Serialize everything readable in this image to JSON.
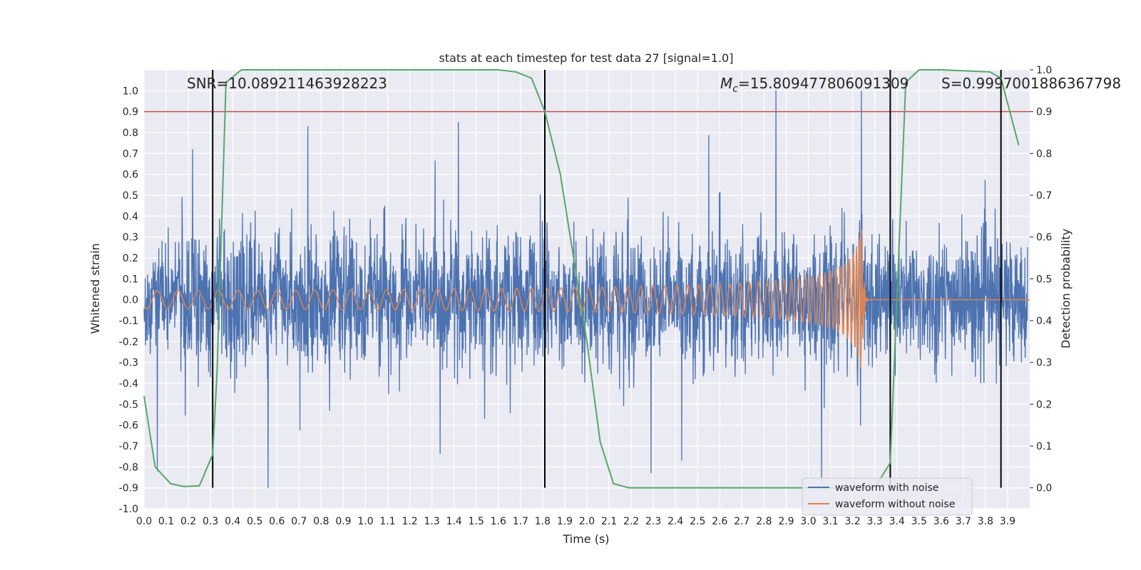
{
  "chart_data": {
    "type": "line",
    "title": "stats at each timestep for test data 27 [signal=1.0]",
    "xlabel": "Time (s)",
    "ylabel": "Whitened strain",
    "ylabel_right": "Detection probability",
    "xlim": [
      0.0,
      4.0
    ],
    "ylim": [
      -1.0,
      1.1
    ],
    "ylim_right": [
      -0.05,
      1.0
    ],
    "x_ticks": [
      "0.0",
      "0.1",
      "0.2",
      "0.3",
      "0.4",
      "0.5",
      "0.6",
      "0.7",
      "0.8",
      "0.9",
      "1.0",
      "1.1",
      "1.2",
      "1.3",
      "1.4",
      "1.5",
      "1.6",
      "1.7",
      "1.8",
      "1.9",
      "2.0",
      "2.1",
      "2.2",
      "2.3",
      "2.4",
      "2.5",
      "2.6",
      "2.7",
      "2.8",
      "2.9",
      "3.0",
      "3.1",
      "3.2",
      "3.3",
      "3.4",
      "3.5",
      "3.6",
      "3.7",
      "3.8",
      "3.9"
    ],
    "y_ticks": [
      "1.0",
      "0.9",
      "0.8",
      "0.7",
      "0.6",
      "0.5",
      "0.4",
      "0.3",
      "0.2",
      "0.1",
      "0.0",
      "-0.1",
      "-0.2",
      "-0.3",
      "-0.4",
      "-0.5",
      "-0.6",
      "-0.7",
      "-0.8",
      "-0.9",
      "-1.0"
    ],
    "y_ticks_right": [
      "1.0",
      "0.9",
      "0.8",
      "0.7",
      "0.6",
      "0.5",
      "0.4",
      "0.3",
      "0.2",
      "0.1",
      "0.0"
    ],
    "annotations": {
      "snr": "SNR=10.089211463928223",
      "mc_symbol": "M",
      "mc_sub": "c",
      "mc_value": "=15.809477806091309",
      "s": "S=0.9997001886367798"
    },
    "threshold_right": 0.9,
    "vertical_lines_x": [
      0.31,
      1.81,
      3.37,
      3.87
    ],
    "noise_series": {
      "name": "waveform with noise",
      "color": "#4c72b0",
      "samples": 3000,
      "sigma": 0.15,
      "peaks": [
        {
          "x": 0.06,
          "y": -0.82
        },
        {
          "x": 0.22,
          "y": 0.72
        },
        {
          "x": 0.74,
          "y": 0.83
        },
        {
          "x": 1.42,
          "y": 0.85
        },
        {
          "x": 2.29,
          "y": -0.83
        },
        {
          "x": 3.24,
          "y": 1.0
        },
        {
          "x": 3.06,
          "y": -0.87
        }
      ]
    },
    "clean_series": {
      "name": "waveform without noise",
      "color": "#dd8452",
      "t_merge": 3.245,
      "amp_peak": 0.4,
      "amp_base": 0.02
    },
    "probability_series": {
      "name": "detection probability",
      "color": "#55a868",
      "axis": "right",
      "x": [
        0.0,
        0.05,
        0.12,
        0.18,
        0.25,
        0.31,
        0.33,
        0.37,
        0.44,
        0.62,
        1.0,
        1.6,
        1.68,
        1.75,
        1.81,
        1.88,
        2.0,
        2.06,
        2.12,
        2.19,
        2.5,
        3.3,
        3.37,
        3.44,
        3.5,
        3.6,
        3.82,
        3.87,
        3.95
      ],
      "y": [
        0.22,
        0.05,
        0.01,
        0.003,
        0.005,
        0.08,
        0.28,
        0.97,
        1.0,
        1.0,
        1.0,
        1.0,
        0.995,
        0.98,
        0.9,
        0.75,
        0.35,
        0.11,
        0.01,
        0.0,
        0.0,
        0.0,
        0.06,
        0.97,
        1.0,
        1.0,
        0.995,
        0.98,
        0.82
      ]
    },
    "grid": true,
    "legend_position": "lower-right"
  }
}
